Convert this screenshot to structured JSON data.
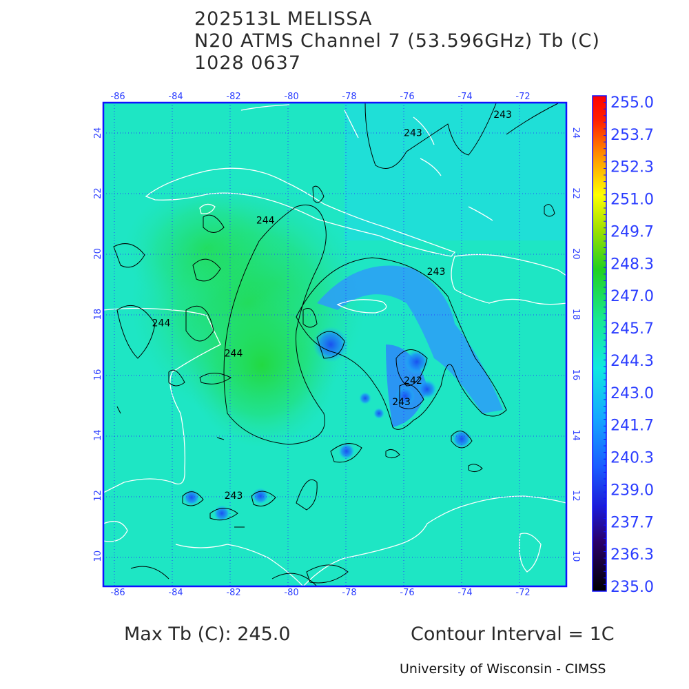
{
  "header": {
    "storm_id": "202513L MELISSA",
    "product": "N20 ATMS Channel 7 (53.596GHz) Tb (C)",
    "datetime": "1028 0637"
  },
  "map": {
    "lon_labels": [
      "-86",
      "-84",
      "-82",
      "-80",
      "-78",
      "-76",
      "-74",
      "-72"
    ],
    "lat_labels": [
      "24",
      "22",
      "20",
      "18",
      "16",
      "14",
      "12",
      "10"
    ],
    "lon_range": [
      -86.5,
      -70.5
    ],
    "lat_range": [
      9,
      25
    ],
    "contour_labels": [
      {
        "text": "243",
        "lon": -75.8,
        "lat": 23.9
      },
      {
        "text": "243",
        "lon": -72.7,
        "lat": 24.5
      },
      {
        "text": "244",
        "lon": -80.9,
        "lat": 21.0
      },
      {
        "text": "243",
        "lon": -75.0,
        "lat": 19.3
      },
      {
        "text": "244",
        "lon": -84.5,
        "lat": 17.6
      },
      {
        "text": "244",
        "lon": -82.0,
        "lat": 16.6
      },
      {
        "text": "242",
        "lon": -75.8,
        "lat": 15.7
      },
      {
        "text": "243",
        "lon": -76.2,
        "lat": 15.0
      },
      {
        "text": "243",
        "lon": -82.0,
        "lat": 11.9
      }
    ],
    "colors": {
      "frame": "#1010ff",
      "grid": "#2a3cff",
      "coast": "#ffffff",
      "contour": "#000000"
    }
  },
  "colorbar": {
    "labels": [
      "255.0",
      "253.7",
      "252.3",
      "251.0",
      "249.7",
      "248.3",
      "247.0",
      "245.7",
      "244.3",
      "243.0",
      "241.7",
      "240.3",
      "239.0",
      "237.7",
      "236.3",
      "235.0"
    ],
    "label_color": "#2a3cff"
  },
  "footer": {
    "max_tb": "Max Tb (C): 245.0",
    "contour_interval": "Contour Interval = 1C",
    "credit": "University of Wisconsin - CIMSS"
  }
}
